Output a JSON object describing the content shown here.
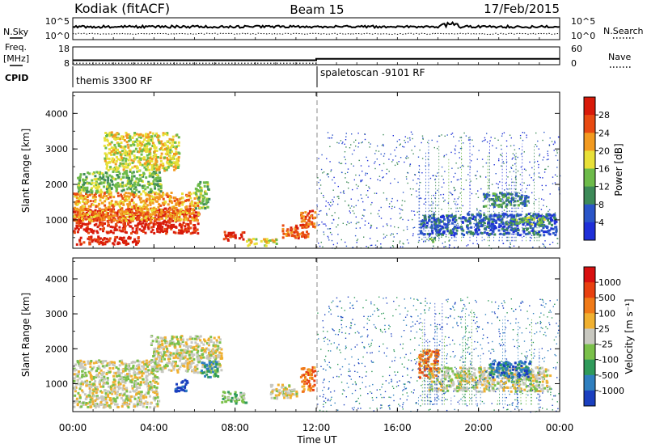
{
  "header": {
    "station": "Kodiak (fitACF)",
    "beam": "Beam 15",
    "date": "17/Feb/2015"
  },
  "panels": {
    "nsky": {
      "left_label": "N.Sky",
      "left_ticks": [
        "10^5",
        "10^0"
      ],
      "right_ticks": [
        "10^5",
        "10^0"
      ],
      "right_label": "N.Search"
    },
    "freq": {
      "left_label_1": "Freq.",
      "left_label_2": "[MHz]",
      "left_ticks": [
        "18",
        "8"
      ],
      "right_ticks": [
        "60",
        "0"
      ],
      "right_label": "Nave"
    },
    "cpid": {
      "label": "CPID",
      "segments": [
        "themis 3300 RF",
        "spaletoscan -9101 RF"
      ]
    }
  },
  "x_axis": {
    "label": "Time UT",
    "ticks": [
      "00:00",
      "04:00",
      "08:00",
      "12:00",
      "16:00",
      "20:00",
      "00:00"
    ]
  },
  "chart_data": [
    {
      "type": "heatmap",
      "name": "power",
      "ylabel": "Slant Range [km]",
      "y_ticks": [
        1000,
        2000,
        3000,
        4000
      ],
      "ylim": [
        200,
        4600
      ],
      "xlim_hours": [
        0,
        24
      ],
      "colorbar": {
        "label": "Power [dB]",
        "ticks": [
          "4",
          "8",
          "12",
          "16",
          "20",
          "24",
          "28"
        ],
        "colors": [
          "#1f2fd8",
          "#2a55c8",
          "#3d8a58",
          "#6dbb4a",
          "#e8e038",
          "#f29a20",
          "#e84a12",
          "#d81a0a"
        ]
      },
      "regions": [
        {
          "t0": 0.0,
          "t1": 6.2,
          "r0": 650,
          "r1": 1350,
          "level": 7
        },
        {
          "t0": 0.0,
          "t1": 6.2,
          "r0": 1000,
          "r1": 1800,
          "level": 5
        },
        {
          "t0": 0.2,
          "t1": 4.3,
          "r0": 1800,
          "r1": 2400,
          "level": 3
        },
        {
          "t0": 1.5,
          "t1": 5.2,
          "r0": 2400,
          "r1": 3500,
          "level": 4
        },
        {
          "t0": 0.1,
          "t1": 3.2,
          "r0": 330,
          "r1": 560,
          "level": 7
        },
        {
          "t0": 6.0,
          "t1": 6.7,
          "r0": 1350,
          "r1": 2100,
          "level": 3
        },
        {
          "t0": 7.4,
          "t1": 8.4,
          "r0": 450,
          "r1": 700,
          "level": 7
        },
        {
          "t0": 10.3,
          "t1": 11.6,
          "r0": 500,
          "r1": 900,
          "level": 6
        },
        {
          "t0": 11.2,
          "t1": 11.9,
          "r0": 800,
          "r1": 1300,
          "level": 6
        },
        {
          "t0": 8.5,
          "t1": 10.0,
          "r0": 300,
          "r1": 500,
          "level": 4
        },
        {
          "t0": 17.1,
          "t1": 23.8,
          "r0": 600,
          "r1": 1200,
          "level": 1
        },
        {
          "t0": 20.2,
          "t1": 22.4,
          "r0": 1400,
          "r1": 1800,
          "level": 2
        },
        {
          "t0": 21.3,
          "t1": 23.2,
          "r0": 900,
          "r1": 1100,
          "level": 3
        },
        {
          "t0": 17.5,
          "t1": 17.8,
          "r0": 400,
          "r1": 550,
          "level": 3
        }
      ]
    },
    {
      "type": "heatmap",
      "name": "velocity",
      "ylabel": "Slant Range [km]",
      "y_ticks": [
        1000,
        2000,
        3000,
        4000
      ],
      "ylim": [
        200,
        4600
      ],
      "xlim_hours": [
        0,
        24
      ],
      "colorbar": {
        "label": "Velocity [m s⁻¹]",
        "ticks": [
          "1000",
          "500",
          "100",
          "25",
          "-25",
          "-100",
          "-500",
          "-1000"
        ],
        "colors": [
          "#1a3fbf",
          "#2f7fbf",
          "#2f9a5a",
          "#7ac04a",
          "#c8c8c0",
          "#f0b030",
          "#f07a18",
          "#e84010",
          "#d81010"
        ]
      },
      "regions": [
        {
          "t0": 0.0,
          "t1": 4.2,
          "r0": 350,
          "r1": 1700,
          "level": 4
        },
        {
          "t0": 3.8,
          "t1": 7.3,
          "r0": 1350,
          "r1": 2400,
          "level": 4
        },
        {
          "t0": 5.0,
          "t1": 5.6,
          "r0": 800,
          "r1": 1200,
          "level": 0
        },
        {
          "t0": 6.3,
          "t1": 7.1,
          "r0": 1200,
          "r1": 1700,
          "level": 2
        },
        {
          "t0": 7.3,
          "t1": 8.5,
          "r0": 450,
          "r1": 800,
          "level": 3
        },
        {
          "t0": 9.7,
          "t1": 11.0,
          "r0": 600,
          "r1": 1000,
          "level": 4
        },
        {
          "t0": 11.2,
          "t1": 11.9,
          "r0": 800,
          "r1": 1500,
          "level": 6
        },
        {
          "t0": 17.5,
          "t1": 23.5,
          "r0": 800,
          "r1": 1500,
          "level": 4
        },
        {
          "t0": 20.5,
          "t1": 22.5,
          "r0": 1200,
          "r1": 1700,
          "level": 1
        },
        {
          "t0": 17.0,
          "t1": 18.0,
          "r0": 1200,
          "r1": 2000,
          "level": 6
        }
      ]
    }
  ],
  "time_series": {
    "cpid_change_hour": 12.0,
    "freq_before_mhz": 10.5,
    "freq_after_mhz": 11.3,
    "nave_before": 5,
    "nave_after": 20
  }
}
